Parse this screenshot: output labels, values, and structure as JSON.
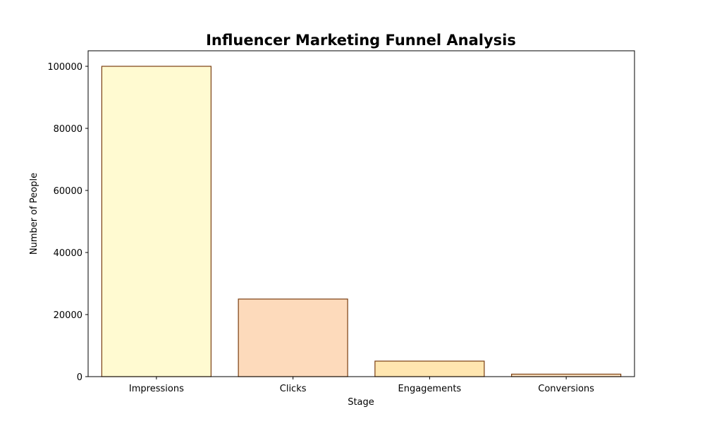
{
  "chart_data": {
    "type": "bar",
    "title": "Influencer Marketing Funnel Analysis",
    "xlabel": "Stage",
    "ylabel": "Number of People",
    "categories": [
      "Impressions",
      "Clicks",
      "Engagements",
      "Conversions"
    ],
    "values": [
      100000,
      25000,
      5000,
      800
    ],
    "ylim": [
      0,
      105000
    ],
    "yticks": [
      0,
      20000,
      40000,
      60000,
      80000,
      100000
    ],
    "ytick_labels": [
      "0",
      "20000",
      "40000",
      "60000",
      "80000",
      "100000"
    ],
    "bar_colors": [
      "#fffad1",
      "#fddabb",
      "#ffe6b0",
      "#fde3c2"
    ],
    "bar_edge_color": "#7a3e10",
    "grid": false,
    "legend": "none"
  }
}
